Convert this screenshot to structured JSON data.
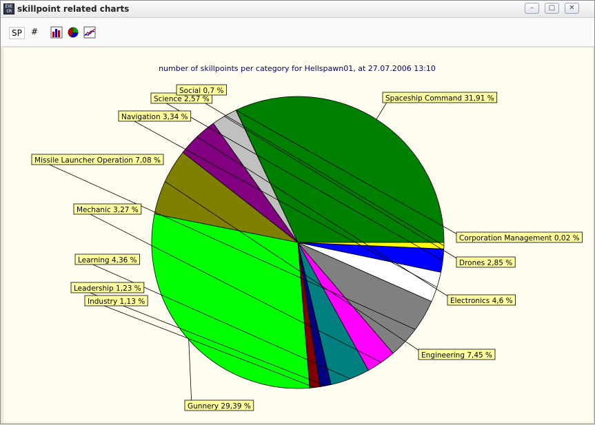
{
  "window": {
    "title": "skillpoint related charts",
    "app_icon_text": "EVE CM",
    "buttons": {
      "minimize": "–",
      "maximize": "□",
      "close": "✕"
    }
  },
  "toolbar": {
    "sp_label": "SP",
    "count_label": "#",
    "icons": [
      "bar-chart-icon",
      "pie-chart-icon",
      "line-chart-icon"
    ]
  },
  "chart_data": {
    "type": "pie",
    "title": "number of skillpoints per category for Hellspawn01, at 27.07.2006 13:10",
    "slices": [
      {
        "label": "Spaceship Command 31,91 %",
        "value": 31.91,
        "color": "#008000"
      },
      {
        "label": "Corporation Management 0,02 %",
        "value": 0.02,
        "color": "#000000"
      },
      {
        "label": "Drones 2,85 %",
        "value": 2.85,
        "color": "#c0c0c0"
      },
      {
        "label": "Electronics 4,6 %",
        "value": 4.6,
        "color": "#800080"
      },
      {
        "label": "Engineering 7,45 %",
        "value": 7.45,
        "color": "#808000"
      },
      {
        "label": "Gunnery 29,39 %",
        "value": 29.39,
        "color": "#00ff00"
      },
      {
        "label": "Industry 1,13 %",
        "value": 1.13,
        "color": "#800000"
      },
      {
        "label": "Leadership 1,23 %",
        "value": 1.23,
        "color": "#000080"
      },
      {
        "label": "Learning 4,36 %",
        "value": 4.36,
        "color": "#008080"
      },
      {
        "label": "Mechanic 3,27 %",
        "value": 3.27,
        "color": "#ff00ff"
      },
      {
        "label": "Missile Launcher Operation 7,08 %",
        "value": 7.08,
        "color": "#808080"
      },
      {
        "label": "Navigation 3,34 %",
        "value": 3.34,
        "color": "#ffffff"
      },
      {
        "label": "Science 2,57 %",
        "value": 2.57,
        "color": "#0000ff"
      },
      {
        "label": "Social 0,7 %",
        "value": 0.7,
        "color": "#ffff00"
      }
    ],
    "label_background": "#ffffa0"
  }
}
